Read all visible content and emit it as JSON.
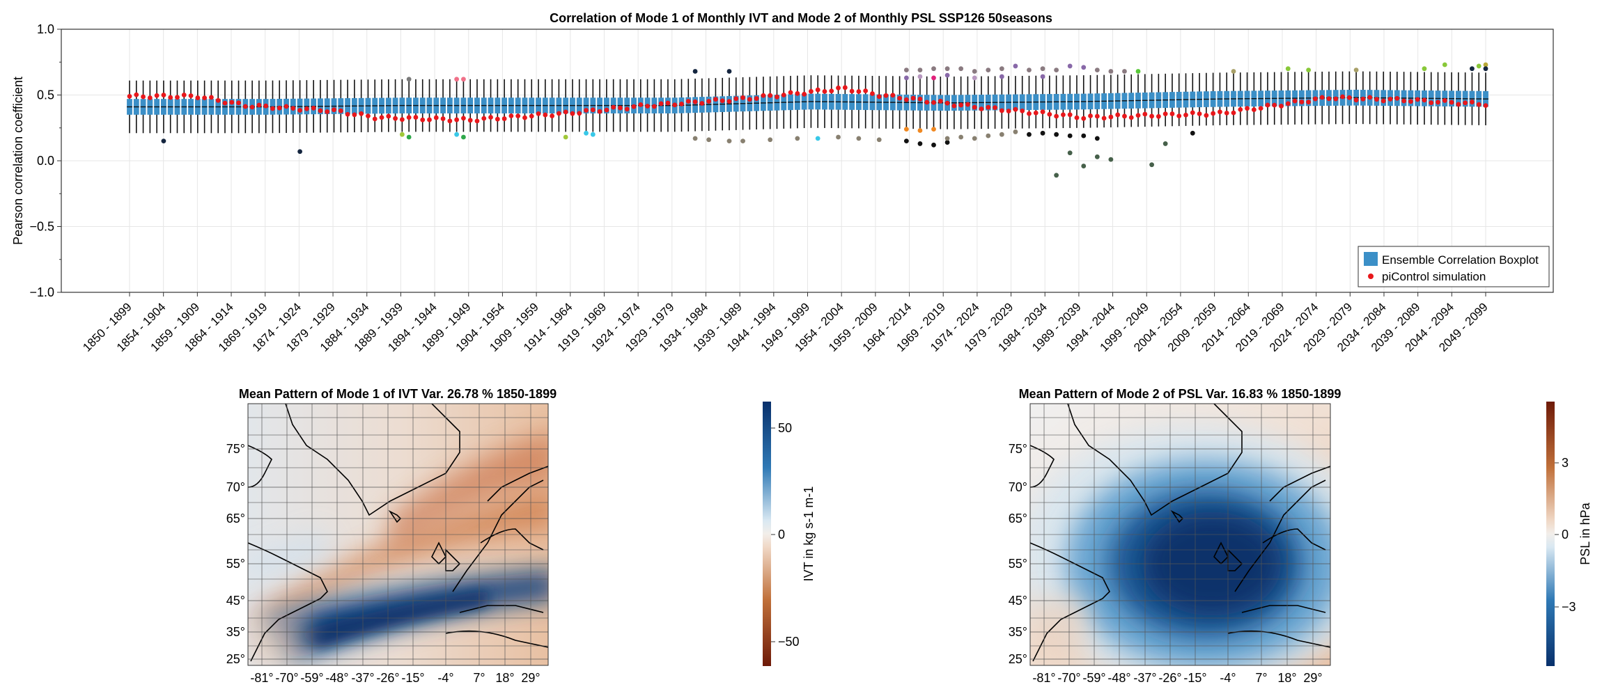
{
  "chart_data": [
    {
      "type": "boxplot",
      "title": "Correlation of Mode 1 of Monthly IVT and Mode 2 of Monthly PSL SSP126 50seasons",
      "xlabel": "",
      "ylabel": "Pearson correlation coefficient",
      "ylim": [
        -1.0,
        1.0
      ],
      "yticks": [
        "1.0",
        "0.5",
        "0.0",
        "−0.5",
        "−1.0"
      ],
      "yticks_values": [
        1.0,
        0.5,
        0.0,
        -0.5,
        -1.0
      ],
      "grid": true,
      "legend_position": "bottom-right",
      "legend": [
        {
          "label": "Ensemble Correlation Boxplot",
          "color": "#3b8fc7"
        },
        {
          "label": "piControl simulation",
          "color": "#e8171b"
        }
      ],
      "xtick_labels": [
        "1850 - 1899",
        "1854 - 1904",
        "1859 - 1909",
        "1864 - 1914",
        "1869 - 1919",
        "1874 - 1924",
        "1879 - 1929",
        "1884 - 1934",
        "1889 - 1939",
        "1894 - 1944",
        "1899 - 1949",
        "1904 - 1954",
        "1909 - 1959",
        "1914 - 1964",
        "1919 - 1969",
        "1924 - 1974",
        "1929 - 1979",
        "1934 - 1984",
        "1939 - 1989",
        "1944 - 1994",
        "1949 - 1999",
        "1954 - 2004",
        "1959 - 2009",
        "1964 - 2014",
        "1969 - 2019",
        "1974 - 2024",
        "1979 - 2029",
        "1984 - 2034",
        "1989 - 2039",
        "1994 - 2044",
        "1999 - 2049",
        "2004 - 2054",
        "2009 - 2059",
        "2014 - 2064",
        "2019 - 2069",
        "2024 - 2074",
        "2029 - 2079",
        "2034 - 2084",
        "2039 - 2089",
        "2044 - 2094",
        "2049 - 2099"
      ],
      "n_windows": 200,
      "window_start_year": 1850,
      "window_end_year": 2049,
      "median": [
        {
          "x": 0,
          "y": 0.41
        },
        {
          "x": 20,
          "y": 0.41
        },
        {
          "x": 40,
          "y": 0.42
        },
        {
          "x": 60,
          "y": 0.42
        },
        {
          "x": 80,
          "y": 0.42
        },
        {
          "x": 100,
          "y": 0.45
        },
        {
          "x": 120,
          "y": 0.44
        },
        {
          "x": 140,
          "y": 0.45
        },
        {
          "x": 160,
          "y": 0.47
        },
        {
          "x": 180,
          "y": 0.48
        },
        {
          "x": 199,
          "y": 0.47
        }
      ],
      "box_half_height": 0.06,
      "whisker_half_height": 0.2,
      "picontrol": [
        {
          "x": 0,
          "y": 0.49
        },
        {
          "x": 10,
          "y": 0.49
        },
        {
          "x": 17,
          "y": 0.42
        },
        {
          "x": 30,
          "y": 0.38
        },
        {
          "x": 36,
          "y": 0.33
        },
        {
          "x": 50,
          "y": 0.31
        },
        {
          "x": 64,
          "y": 0.36
        },
        {
          "x": 76,
          "y": 0.42
        },
        {
          "x": 90,
          "y": 0.47
        },
        {
          "x": 105,
          "y": 0.55
        },
        {
          "x": 110,
          "y": 0.5
        },
        {
          "x": 124,
          "y": 0.41
        },
        {
          "x": 140,
          "y": 0.33
        },
        {
          "x": 160,
          "y": 0.36
        },
        {
          "x": 176,
          "y": 0.48
        },
        {
          "x": 188,
          "y": 0.46
        },
        {
          "x": 199,
          "y": 0.43
        }
      ],
      "outliers": [
        {
          "x": 5,
          "y": 0.15,
          "color": "#14253f"
        },
        {
          "x": 25,
          "y": 0.07,
          "color": "#14253f"
        },
        {
          "x": 41,
          "y": 0.62,
          "color": "#7a7a7a"
        },
        {
          "x": 40,
          "y": 0.2,
          "color": "#a0c838"
        },
        {
          "x": 41,
          "y": 0.18,
          "color": "#2ea84a"
        },
        {
          "x": 48,
          "y": 0.62,
          "color": "#f07088"
        },
        {
          "x": 49,
          "y": 0.62,
          "color": "#f07088"
        },
        {
          "x": 48,
          "y": 0.2,
          "color": "#38c8e8"
        },
        {
          "x": 49,
          "y": 0.18,
          "color": "#2ea84a"
        },
        {
          "x": 64,
          "y": 0.18,
          "color": "#a0c838"
        },
        {
          "x": 67,
          "y": 0.21,
          "color": "#38c8e8"
        },
        {
          "x": 68,
          "y": 0.2,
          "color": "#38c8e8"
        },
        {
          "x": 83,
          "y": 0.68,
          "color": "#14253f"
        },
        {
          "x": 88,
          "y": 0.68,
          "color": "#14253f"
        },
        {
          "x": 83,
          "y": 0.17,
          "color": "#888070"
        },
        {
          "x": 85,
          "y": 0.16,
          "color": "#888070"
        },
        {
          "x": 88,
          "y": 0.15,
          "color": "#888070"
        },
        {
          "x": 90,
          "y": 0.15,
          "color": "#888070"
        },
        {
          "x": 94,
          "y": 0.16,
          "color": "#888070"
        },
        {
          "x": 98,
          "y": 0.17,
          "color": "#888070"
        },
        {
          "x": 101,
          "y": 0.17,
          "color": "#38c8e8"
        },
        {
          "x": 104,
          "y": 0.18,
          "color": "#888070"
        },
        {
          "x": 107,
          "y": 0.17,
          "color": "#888070"
        },
        {
          "x": 110,
          "y": 0.16,
          "color": "#888070"
        },
        {
          "x": 114,
          "y": 0.69,
          "color": "#8a7a80"
        },
        {
          "x": 116,
          "y": 0.69,
          "color": "#8a7a80"
        },
        {
          "x": 114,
          "y": 0.63,
          "color": "#8868a8"
        },
        {
          "x": 116,
          "y": 0.64,
          "color": "#b898c0"
        },
        {
          "x": 118,
          "y": 0.7,
          "color": "#8a7a80"
        },
        {
          "x": 118,
          "y": 0.63,
          "color": "#e0207a"
        },
        {
          "x": 120,
          "y": 0.7,
          "color": "#8a7a80"
        },
        {
          "x": 120,
          "y": 0.65,
          "color": "#8868a8"
        },
        {
          "x": 122,
          "y": 0.7,
          "color": "#8a7a80"
        },
        {
          "x": 124,
          "y": 0.68,
          "color": "#8a7a80"
        },
        {
          "x": 124,
          "y": 0.63,
          "color": "#b898c0"
        },
        {
          "x": 126,
          "y": 0.69,
          "color": "#8a7a80"
        },
        {
          "x": 128,
          "y": 0.7,
          "color": "#8a7a80"
        },
        {
          "x": 128,
          "y": 0.64,
          "color": "#8868a8"
        },
        {
          "x": 130,
          "y": 0.72,
          "color": "#8868a8"
        },
        {
          "x": 132,
          "y": 0.69,
          "color": "#8a7a80"
        },
        {
          "x": 134,
          "y": 0.7,
          "color": "#8a7a80"
        },
        {
          "x": 134,
          "y": 0.64,
          "color": "#8868a8"
        },
        {
          "x": 136,
          "y": 0.69,
          "color": "#8a7a80"
        },
        {
          "x": 138,
          "y": 0.72,
          "color": "#8868a8"
        },
        {
          "x": 140,
          "y": 0.71,
          "color": "#8868a8"
        },
        {
          "x": 142,
          "y": 0.69,
          "color": "#8a7a80"
        },
        {
          "x": 144,
          "y": 0.68,
          "color": "#8a7a80"
        },
        {
          "x": 146,
          "y": 0.68,
          "color": "#8a7a80"
        },
        {
          "x": 148,
          "y": 0.68,
          "color": "#58c838"
        },
        {
          "x": 114,
          "y": 0.15,
          "color": "#111111"
        },
        {
          "x": 116,
          "y": 0.13,
          "color": "#111111"
        },
        {
          "x": 118,
          "y": 0.12,
          "color": "#111111"
        },
        {
          "x": 120,
          "y": 0.14,
          "color": "#111111"
        },
        {
          "x": 114,
          "y": 0.24,
          "color": "#f08820"
        },
        {
          "x": 116,
          "y": 0.23,
          "color": "#f08820"
        },
        {
          "x": 118,
          "y": 0.24,
          "color": "#f08820"
        },
        {
          "x": 120,
          "y": 0.17,
          "color": "#888070"
        },
        {
          "x": 122,
          "y": 0.18,
          "color": "#888070"
        },
        {
          "x": 124,
          "y": 0.17,
          "color": "#888070"
        },
        {
          "x": 126,
          "y": 0.19,
          "color": "#888070"
        },
        {
          "x": 128,
          "y": 0.2,
          "color": "#888070"
        },
        {
          "x": 130,
          "y": 0.22,
          "color": "#888070"
        },
        {
          "x": 132,
          "y": 0.2,
          "color": "#111111"
        },
        {
          "x": 134,
          "y": 0.21,
          "color": "#111111"
        },
        {
          "x": 136,
          "y": 0.2,
          "color": "#111111"
        },
        {
          "x": 138,
          "y": 0.19,
          "color": "#111111"
        },
        {
          "x": 140,
          "y": 0.19,
          "color": "#111111"
        },
        {
          "x": 142,
          "y": 0.17,
          "color": "#111111"
        },
        {
          "x": 136,
          "y": -0.11,
          "color": "#46604a"
        },
        {
          "x": 138,
          "y": 0.06,
          "color": "#46604a"
        },
        {
          "x": 140,
          "y": -0.04,
          "color": "#46604a"
        },
        {
          "x": 142,
          "y": 0.03,
          "color": "#46604a"
        },
        {
          "x": 144,
          "y": 0.01,
          "color": "#46604a"
        },
        {
          "x": 150,
          "y": -0.03,
          "color": "#46604a"
        },
        {
          "x": 152,
          "y": 0.13,
          "color": "#46604a"
        },
        {
          "x": 156,
          "y": 0.21,
          "color": "#111111"
        },
        {
          "x": 162,
          "y": 0.68,
          "color": "#a8a068"
        },
        {
          "x": 170,
          "y": 0.7,
          "color": "#88c838"
        },
        {
          "x": 173,
          "y": 0.69,
          "color": "#88c838"
        },
        {
          "x": 180,
          "y": 0.69,
          "color": "#a8a068"
        },
        {
          "x": 190,
          "y": 0.7,
          "color": "#88c838"
        },
        {
          "x": 193,
          "y": 0.73,
          "color": "#88c838"
        },
        {
          "x": 198,
          "y": 0.72,
          "color": "#88c838"
        },
        {
          "x": 199,
          "y": 0.73,
          "color": "#b8a838"
        },
        {
          "x": 197,
          "y": 0.7,
          "color": "#14253f"
        },
        {
          "x": 199,
          "y": 0.7,
          "color": "#14253f"
        }
      ]
    },
    {
      "type": "heatmap",
      "title": "Mean Pattern of Mode 1 of IVT Var. 26.78 % 1850-1899",
      "xticks": [
        "-81°",
        "-70°",
        "-59°",
        "-48°",
        "-37°",
        "-26°",
        "-15°",
        "-4°",
        "7°",
        "18°",
        "29°"
      ],
      "yticks": [
        "75°",
        "70°",
        "65°",
        "55°",
        "45°",
        "35°",
        "25°"
      ],
      "colorbar_label": "IVT in kg s-1 m-1",
      "colorbar_ticks": [
        "50",
        "0",
        "−50"
      ],
      "colormap": "diverging blue (positive) to brown (negative)"
    },
    {
      "type": "heatmap",
      "title": "Mean Pattern of Mode 2 of PSL Var. 16.83 % 1850-1899",
      "xticks": [
        "-81°",
        "-70°",
        "-59°",
        "-48°",
        "-37°",
        "-26°",
        "-15°",
        "-4°",
        "7°",
        "18°",
        "29°"
      ],
      "yticks": [
        "75°",
        "70°",
        "65°",
        "55°",
        "45°",
        "35°",
        "25°"
      ],
      "colorbar_label": "PSL in hPa",
      "colorbar_ticks": [
        "3",
        "0",
        "−3"
      ],
      "colormap": "diverging brown (positive) to blue (negative)"
    }
  ]
}
